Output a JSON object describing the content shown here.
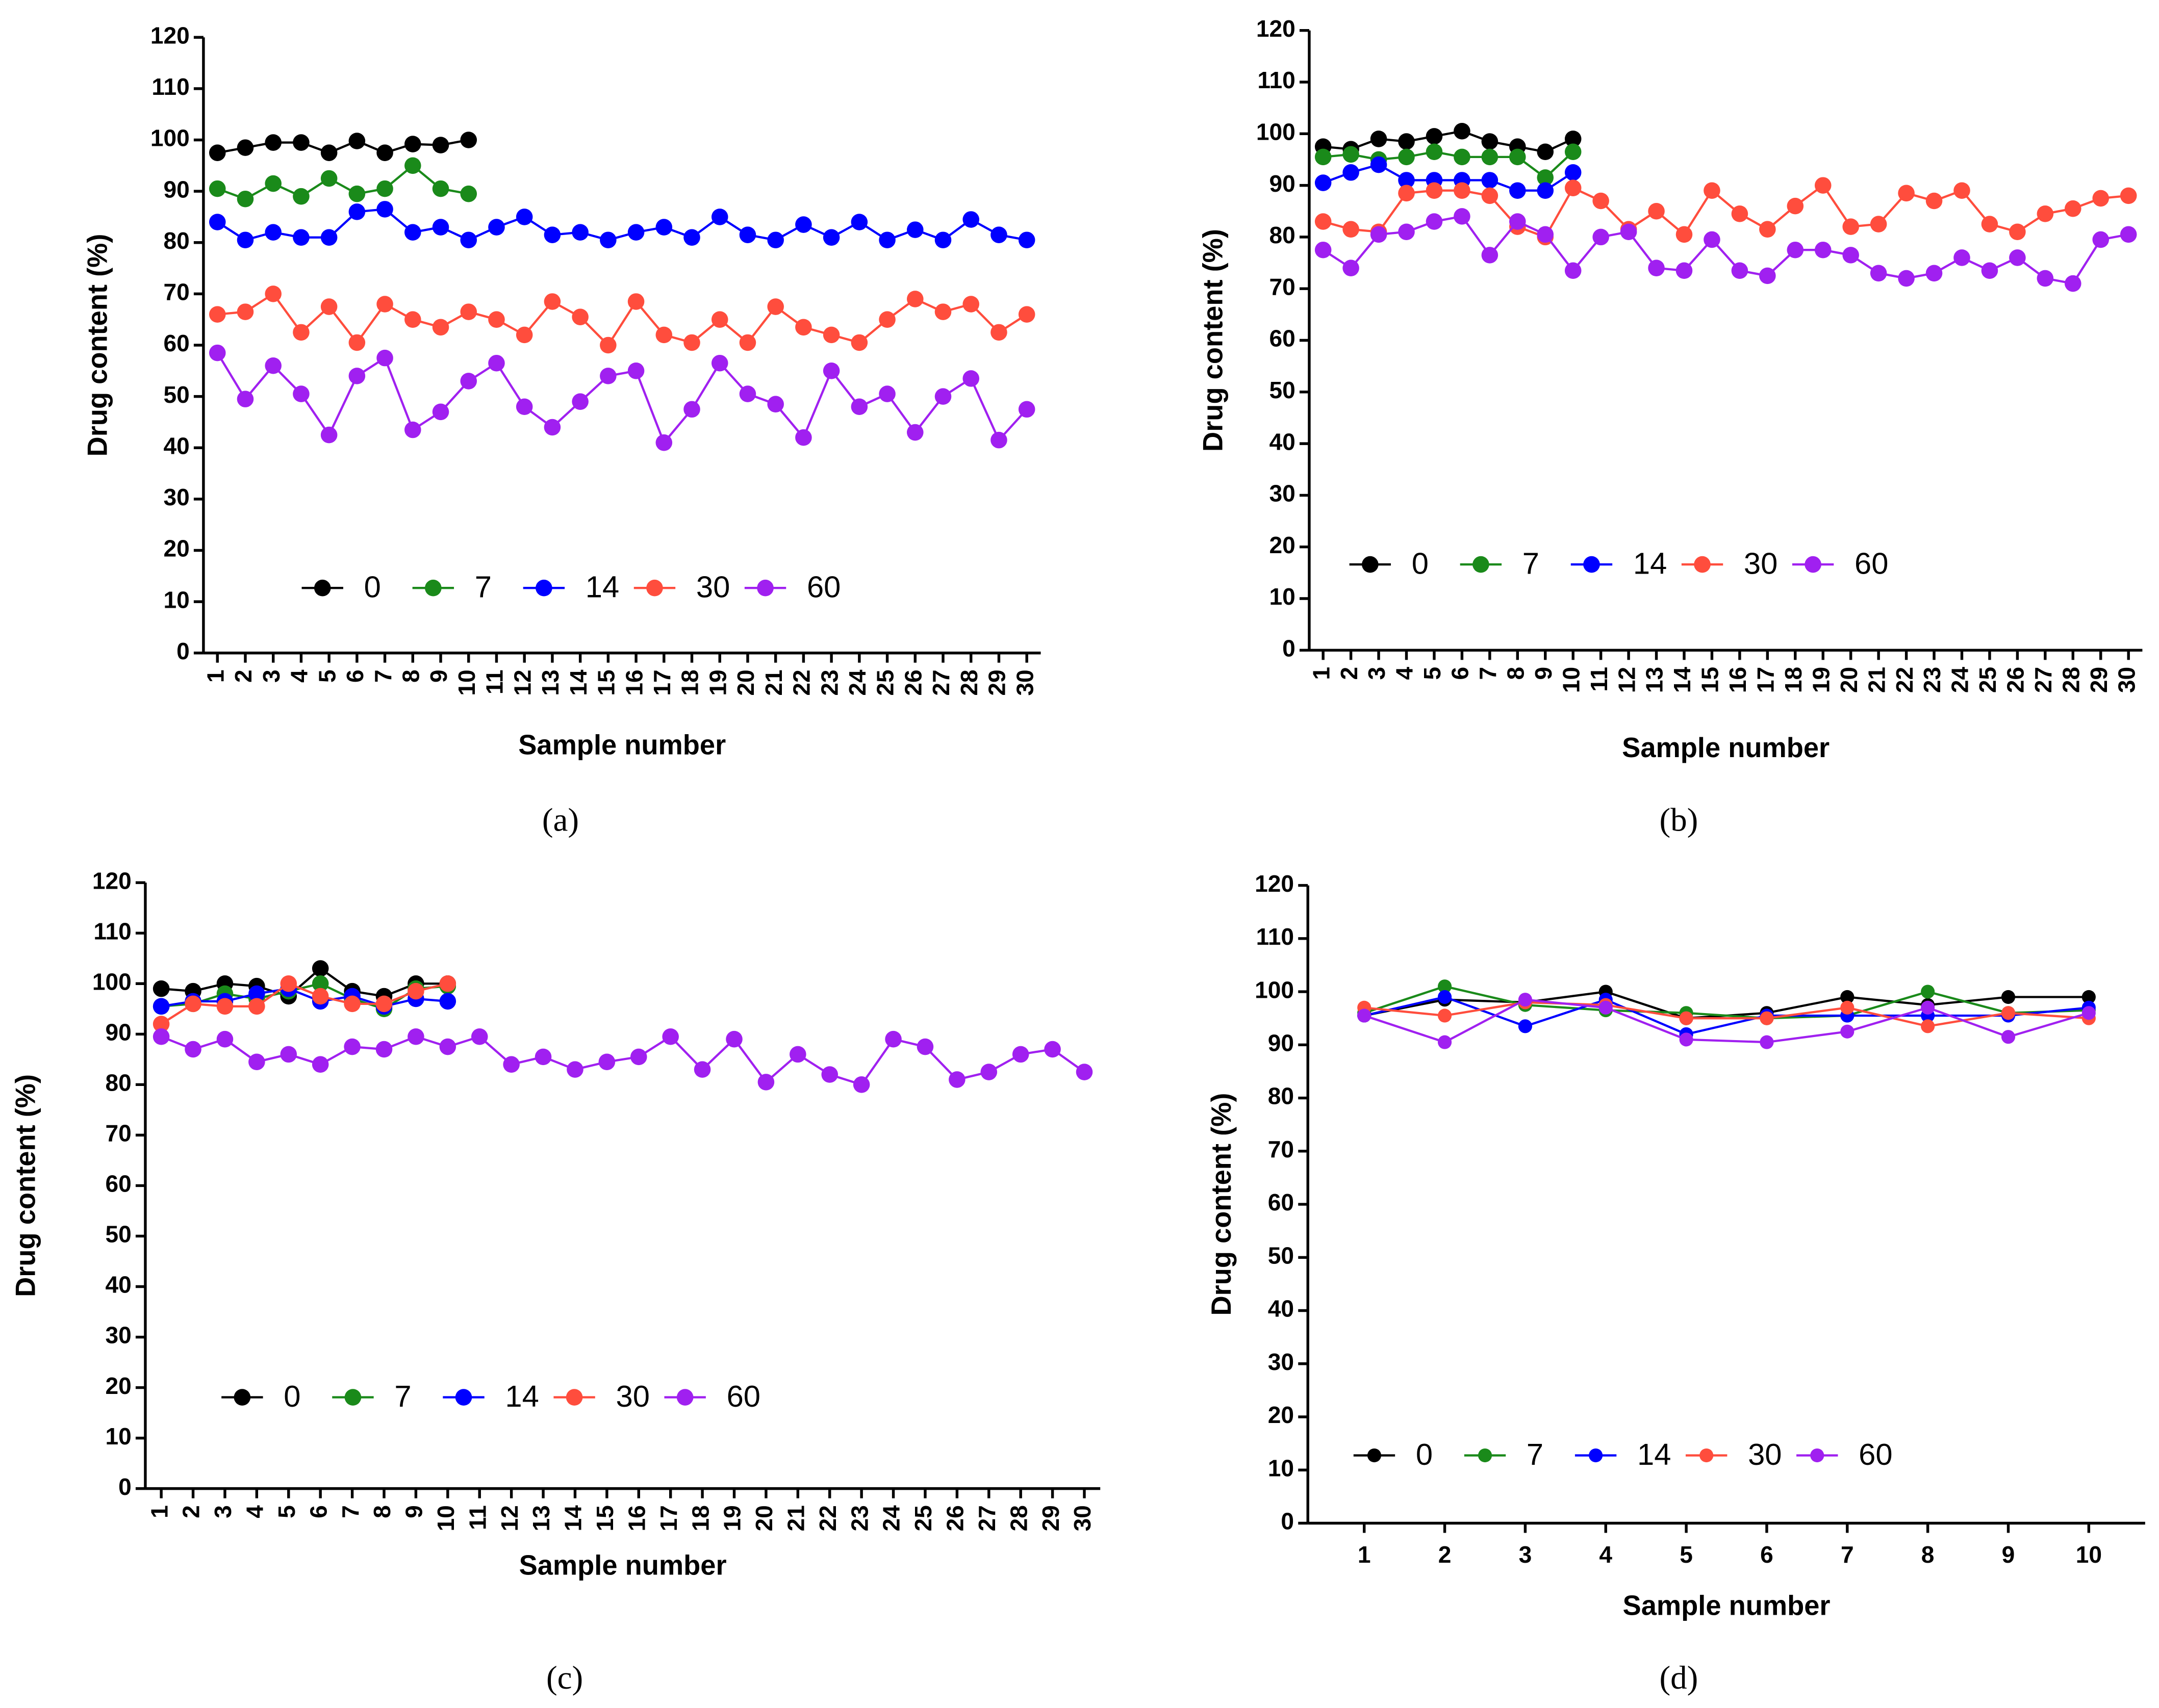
{
  "chart_data": [
    {
      "type": "line",
      "caption": "(a)",
      "x_label": "Sample number",
      "y_label": "Drug content (%)",
      "x": [
        1,
        2,
        3,
        4,
        5,
        6,
        7,
        8,
        9,
        10,
        11,
        12,
        13,
        14,
        15,
        16,
        17,
        18,
        19,
        20,
        21,
        22,
        23,
        24,
        25,
        26,
        27,
        28,
        29,
        30
      ],
      "xlim": [
        0.5,
        30.5
      ],
      "xticks": [
        1,
        2,
        3,
        4,
        5,
        6,
        7,
        8,
        9,
        10,
        11,
        12,
        13,
        14,
        15,
        16,
        17,
        18,
        19,
        20,
        21,
        22,
        23,
        24,
        25,
        26,
        27,
        28,
        29,
        30
      ],
      "ylim": [
        0,
        120
      ],
      "yticks": [
        0,
        10,
        20,
        30,
        40,
        50,
        60,
        70,
        80,
        90,
        100,
        110,
        120
      ],
      "series": [
        {
          "name": "0",
          "color": "#000000",
          "values": [
            97.5,
            98.5,
            99.5,
            99.5,
            97.5,
            99.8,
            97.5,
            99.2,
            99,
            100,
            null,
            null,
            null,
            null,
            null,
            null,
            null,
            null,
            null,
            null,
            null,
            null,
            null,
            null,
            null,
            null,
            null,
            null,
            null,
            null
          ]
        },
        {
          "name": "7",
          "color": "#1a8a1a",
          "values": [
            90.5,
            88.5,
            91.5,
            89,
            92.5,
            89.5,
            90.5,
            95,
            90.5,
            89.5,
            null,
            null,
            null,
            null,
            null,
            null,
            null,
            null,
            null,
            null,
            null,
            null,
            null,
            null,
            null,
            null,
            null,
            null,
            null,
            null
          ]
        },
        {
          "name": "14",
          "color": "#0000ff",
          "values": [
            84,
            80.5,
            82,
            81,
            81,
            86,
            86.5,
            82,
            83,
            80.5,
            83,
            85,
            81.5,
            82,
            80.5,
            82,
            83,
            81,
            85,
            81.5,
            80.5,
            83.5,
            81,
            84,
            80.5,
            82.5,
            80.5,
            84.5,
            81.5,
            80.5
          ]
        },
        {
          "name": "30",
          "color": "#ff4d3d",
          "values": [
            66,
            66.5,
            70,
            62.5,
            67.5,
            60.5,
            68,
            65,
            63.5,
            66.5,
            65,
            62,
            68.5,
            65.5,
            60,
            68.5,
            62,
            60.5,
            65,
            60.5,
            67.5,
            63.5,
            62,
            60.5,
            65,
            69,
            66.5,
            68,
            62.5,
            66
          ]
        },
        {
          "name": "60",
          "color": "#a020f0",
          "values": [
            58.5,
            49.5,
            56,
            50.5,
            42.5,
            54,
            57.5,
            43.5,
            47,
            53,
            56.5,
            48,
            44,
            49,
            54,
            55,
            41,
            47.5,
            56.5,
            50.5,
            48.5,
            42,
            55,
            48,
            50.5,
            43,
            50,
            53.5,
            41.5,
            47.5
          ]
        }
      ]
    },
    {
      "type": "line",
      "caption": "(b)",
      "x_label": "Sample number",
      "y_label": "Drug content (%)",
      "x": [
        1,
        2,
        3,
        4,
        5,
        6,
        7,
        8,
        9,
        10,
        11,
        12,
        13,
        14,
        15,
        16,
        17,
        18,
        19,
        20,
        21,
        22,
        23,
        24,
        25,
        26,
        27,
        28,
        29,
        30
      ],
      "xlim": [
        0.5,
        30.5
      ],
      "xticks": [
        1,
        2,
        3,
        4,
        5,
        6,
        7,
        8,
        9,
        10,
        11,
        12,
        13,
        14,
        15,
        16,
        17,
        18,
        19,
        20,
        21,
        22,
        23,
        24,
        25,
        26,
        27,
        28,
        29,
        30
      ],
      "ylim": [
        0,
        120
      ],
      "yticks": [
        0,
        10,
        20,
        30,
        40,
        50,
        60,
        70,
        80,
        90,
        100,
        110,
        120
      ],
      "series": [
        {
          "name": "0",
          "color": "#000000",
          "values": [
            97.5,
            97,
            99,
            98.5,
            99.5,
            100.5,
            98.5,
            97.5,
            96.5,
            99,
            null,
            null,
            null,
            null,
            null,
            null,
            null,
            null,
            null,
            null,
            null,
            null,
            null,
            null,
            null,
            null,
            null,
            null,
            null,
            null
          ]
        },
        {
          "name": "7",
          "color": "#1a8a1a",
          "values": [
            95.5,
            96,
            95,
            95.5,
            96.5,
            95.5,
            95.5,
            95.5,
            91.5,
            96.5,
            null,
            null,
            null,
            null,
            null,
            null,
            null,
            null,
            null,
            null,
            null,
            null,
            null,
            null,
            null,
            null,
            null,
            null,
            null,
            null
          ]
        },
        {
          "name": "14",
          "color": "#0000ff",
          "values": [
            90.5,
            92.5,
            94,
            91,
            91,
            91,
            91,
            89,
            89,
            92.5,
            null,
            null,
            null,
            null,
            null,
            null,
            null,
            null,
            null,
            null,
            null,
            null,
            null,
            null,
            null,
            null,
            null,
            null,
            null,
            null
          ]
        },
        {
          "name": "30",
          "color": "#ff4d3d",
          "values": [
            83,
            81.5,
            81,
            88.5,
            89,
            89,
            88,
            82,
            80,
            89.5,
            87,
            81.5,
            85,
            80.5,
            89,
            84.5,
            81.5,
            86,
            90,
            82,
            82.5,
            88.5,
            87,
            89,
            82.5,
            81,
            84.5,
            85.5,
            87.5,
            88
          ]
        },
        {
          "name": "60",
          "color": "#a020f0",
          "values": [
            77.5,
            74,
            80.5,
            81,
            83,
            84,
            76.5,
            83,
            80.5,
            73.5,
            80,
            81,
            74,
            73.5,
            79.5,
            73.5,
            72.5,
            77.5,
            77.5,
            76.5,
            73,
            72,
            73,
            76,
            73.5,
            76,
            72,
            71,
            79.5,
            80.5
          ]
        }
      ]
    },
    {
      "type": "line",
      "caption": "(c)",
      "x_label": "Sample number",
      "y_label": "Drug content (%)",
      "x": [
        1,
        2,
        3,
        4,
        5,
        6,
        7,
        8,
        9,
        10,
        11,
        12,
        13,
        14,
        15,
        16,
        17,
        18,
        19,
        20,
        21,
        22,
        23,
        24,
        25,
        26,
        27,
        28,
        29,
        30
      ],
      "xlim": [
        0.5,
        30.5
      ],
      "xticks": [
        1,
        2,
        3,
        4,
        5,
        6,
        7,
        8,
        9,
        10,
        11,
        12,
        13,
        14,
        15,
        16,
        17,
        18,
        19,
        20,
        21,
        22,
        23,
        24,
        25,
        26,
        27,
        28,
        29,
        30
      ],
      "ylim": [
        0,
        120
      ],
      "yticks": [
        0,
        10,
        20,
        30,
        40,
        50,
        60,
        70,
        80,
        90,
        100,
        110,
        120
      ],
      "series": [
        {
          "name": "0",
          "color": "#000000",
          "values": [
            99,
            98.5,
            100,
            99.5,
            97.5,
            103,
            98.5,
            97.5,
            100,
            100,
            null,
            null,
            null,
            null,
            null,
            null,
            null,
            null,
            null,
            null,
            null,
            null,
            null,
            null,
            null,
            null,
            null,
            null,
            null,
            null
          ]
        },
        {
          "name": "7",
          "color": "#1a8a1a",
          "values": [
            95.5,
            96,
            98,
            97,
            98.5,
            100,
            97,
            95,
            99,
            99.5,
            null,
            null,
            null,
            null,
            null,
            null,
            null,
            null,
            null,
            null,
            null,
            null,
            null,
            null,
            null,
            null,
            null,
            null,
            null,
            null
          ]
        },
        {
          "name": "14",
          "color": "#0000ff",
          "values": [
            95.5,
            96.5,
            96.5,
            98,
            99,
            96.5,
            97.5,
            95.5,
            97,
            96.5,
            null,
            null,
            null,
            null,
            null,
            null,
            null,
            null,
            null,
            null,
            null,
            null,
            null,
            null,
            null,
            null,
            null,
            null,
            null,
            null
          ]
        },
        {
          "name": "30",
          "color": "#ff4d3d",
          "values": [
            92,
            96,
            95.5,
            95.5,
            100,
            97.5,
            96,
            96,
            98.5,
            100,
            null,
            null,
            null,
            null,
            null,
            null,
            null,
            null,
            null,
            null,
            null,
            null,
            null,
            null,
            null,
            null,
            null,
            null,
            null,
            null
          ]
        },
        {
          "name": "60",
          "color": "#a020f0",
          "values": [
            89.5,
            87,
            89,
            84.5,
            86,
            84,
            87.5,
            87,
            89.5,
            87.5,
            89.5,
            84,
            85.5,
            83,
            84.5,
            85.5,
            89.5,
            83,
            89,
            80.5,
            86,
            82,
            80,
            89,
            87.5,
            81,
            82.5,
            86,
            87,
            82.5
          ]
        }
      ]
    },
    {
      "type": "line",
      "caption": "(d)",
      "x_label": "Sample number",
      "y_label": "Drug content (%)",
      "x": [
        1,
        2,
        3,
        4,
        5,
        6,
        7,
        8,
        9,
        10
      ],
      "xlim": [
        0.3,
        10.7
      ],
      "xticks": [
        1,
        2,
        3,
        4,
        5,
        6,
        7,
        8,
        9,
        10
      ],
      "ylim": [
        0,
        120
      ],
      "yticks": [
        0,
        10,
        20,
        30,
        40,
        50,
        60,
        70,
        80,
        90,
        100,
        110,
        120
      ],
      "series": [
        {
          "name": "0",
          "color": "#000000",
          "values": [
            95.5,
            98.5,
            98,
            100,
            95,
            96,
            99,
            97.5,
            99,
            99
          ]
        },
        {
          "name": "7",
          "color": "#1a8a1a",
          "values": [
            96,
            101,
            97.5,
            96.5,
            96,
            95,
            95.5,
            100,
            96,
            96.5
          ]
        },
        {
          "name": "14",
          "color": "#0000ff",
          "values": [
            95.5,
            99,
            93.5,
            98.5,
            92,
            95.5,
            95.5,
            95.5,
            95.5,
            97
          ]
        },
        {
          "name": "30",
          "color": "#ff4d3d",
          "values": [
            97,
            95.5,
            98,
            97.5,
            95,
            95,
            97,
            93.5,
            96,
            95
          ]
        },
        {
          "name": "60",
          "color": "#a020f0",
          "values": [
            95.5,
            90.5,
            98.5,
            97,
            91,
            90.5,
            92.5,
            97,
            91.5,
            96
          ]
        }
      ]
    }
  ]
}
